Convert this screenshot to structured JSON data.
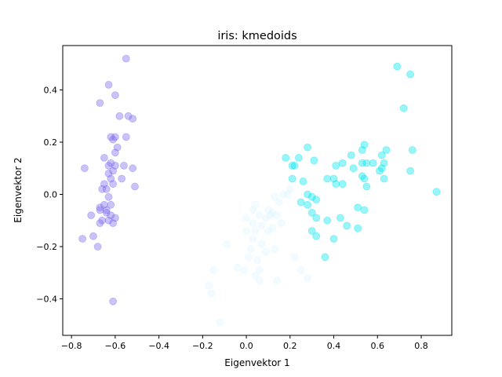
{
  "chart_data": {
    "type": "scatter",
    "title": "iris: kmedoids",
    "xlabel": "Eigenvektor 1",
    "ylabel": "Eigenvektor 2",
    "xlim": [
      -0.84,
      0.94
    ],
    "ylim": [
      -0.54,
      0.57
    ],
    "xticks": [
      -0.8,
      -0.6,
      -0.4,
      -0.2,
      0.0,
      0.2,
      0.4,
      0.6,
      0.8
    ],
    "xtick_labels": [
      "−0.8",
      "−0.6",
      "−0.4",
      "−0.2",
      "0.0",
      "0.2",
      "0.4",
      "0.6",
      "0.8"
    ],
    "yticks": [
      -0.4,
      -0.2,
      0.0,
      0.2,
      0.4
    ],
    "ytick_labels": [
      "−0.4",
      "−0.2",
      "0.0",
      "0.2",
      "0.4"
    ],
    "grid": false,
    "marker_alpha": 0.4,
    "series": [
      {
        "color": "#7b68ee",
        "points": [
          [
            -0.55,
            0.52
          ],
          [
            -0.63,
            0.42
          ],
          [
            -0.6,
            0.38
          ],
          [
            -0.67,
            0.35
          ],
          [
            -0.58,
            0.3
          ],
          [
            -0.54,
            0.3
          ],
          [
            -0.52,
            0.29
          ],
          [
            -0.62,
            0.22
          ],
          [
            -0.6,
            0.22
          ],
          [
            -0.61,
            0.21
          ],
          [
            -0.55,
            0.22
          ],
          [
            -0.59,
            0.18
          ],
          [
            -0.6,
            0.16
          ],
          [
            -0.65,
            0.14
          ],
          [
            -0.62,
            0.12
          ],
          [
            -0.63,
            0.11
          ],
          [
            -0.6,
            0.11
          ],
          [
            -0.56,
            0.11
          ],
          [
            -0.52,
            0.1
          ],
          [
            -0.74,
            0.1
          ],
          [
            -0.61,
            0.09
          ],
          [
            -0.63,
            0.08
          ],
          [
            -0.62,
            0.06
          ],
          [
            -0.57,
            0.06
          ],
          [
            -0.65,
            0.04
          ],
          [
            -0.61,
            0.04
          ],
          [
            -0.51,
            0.03
          ],
          [
            -0.64,
            0.02
          ],
          [
            -0.66,
            0.02
          ],
          [
            -0.63,
            -0.01
          ],
          [
            -0.65,
            -0.04
          ],
          [
            -0.62,
            -0.04
          ],
          [
            -0.67,
            -0.05
          ],
          [
            -0.64,
            -0.06
          ],
          [
            -0.67,
            -0.06
          ],
          [
            -0.64,
            -0.07
          ],
          [
            -0.71,
            -0.08
          ],
          [
            -0.62,
            -0.08
          ],
          [
            -0.6,
            -0.09
          ],
          [
            -0.66,
            -0.1
          ],
          [
            -0.63,
            -0.1
          ],
          [
            -0.67,
            -0.11
          ],
          [
            -0.61,
            -0.11
          ],
          [
            -0.7,
            -0.16
          ],
          [
            -0.75,
            -0.17
          ],
          [
            -0.68,
            -0.2
          ],
          [
            -0.61,
            -0.41
          ]
        ]
      },
      {
        "color": "#00e5ee",
        "points": [
          [
            0.69,
            0.49
          ],
          [
            0.75,
            0.46
          ],
          [
            0.72,
            0.33
          ],
          [
            0.28,
            0.18
          ],
          [
            0.54,
            0.19
          ],
          [
            0.76,
            0.17
          ],
          [
            0.53,
            0.17
          ],
          [
            0.64,
            0.17
          ],
          [
            0.48,
            0.15
          ],
          [
            0.62,
            0.15
          ],
          [
            0.18,
            0.14
          ],
          [
            0.24,
            0.14
          ],
          [
            0.55,
            0.12
          ],
          [
            0.53,
            0.12
          ],
          [
            0.31,
            0.13
          ],
          [
            0.44,
            0.12
          ],
          [
            0.58,
            0.12
          ],
          [
            0.63,
            0.12
          ],
          [
            0.21,
            0.11
          ],
          [
            0.22,
            0.11
          ],
          [
            0.41,
            0.11
          ],
          [
            0.49,
            0.1
          ],
          [
            0.62,
            0.1
          ],
          [
            0.61,
            0.09
          ],
          [
            0.75,
            0.09
          ],
          [
            0.53,
            0.07
          ],
          [
            0.54,
            0.06
          ],
          [
            0.21,
            0.06
          ],
          [
            0.37,
            0.06
          ],
          [
            0.4,
            0.06
          ],
          [
            0.63,
            0.06
          ],
          [
            0.26,
            0.05
          ],
          [
            0.55,
            0.03
          ],
          [
            0.41,
            0.04
          ],
          [
            0.44,
            0.04
          ],
          [
            0.87,
            0.01
          ],
          [
            0.28,
            0.0
          ],
          [
            0.3,
            -0.01
          ],
          [
            0.32,
            -0.02
          ],
          [
            0.25,
            -0.03
          ],
          [
            0.28,
            -0.04
          ],
          [
            0.51,
            -0.05
          ],
          [
            0.54,
            -0.06
          ],
          [
            0.3,
            -0.07
          ],
          [
            0.43,
            -0.09
          ],
          [
            0.32,
            -0.09
          ],
          [
            0.37,
            -0.1
          ],
          [
            0.46,
            -0.12
          ],
          [
            0.3,
            -0.14
          ],
          [
            0.51,
            -0.13
          ],
          [
            0.32,
            -0.16
          ],
          [
            0.4,
            -0.17
          ],
          [
            0.36,
            -0.24
          ]
        ]
      },
      {
        "color": "#dff4ff",
        "points": [
          [
            0.2,
            0.02
          ],
          [
            0.19,
            0.0
          ],
          [
            0.17,
            0.0
          ],
          [
            0.13,
            -0.01
          ],
          [
            0.15,
            -0.03
          ],
          [
            0.04,
            -0.04
          ],
          [
            0.03,
            -0.06
          ],
          [
            0.1,
            -0.06
          ],
          [
            0.12,
            -0.07
          ],
          [
            0.06,
            -0.08
          ],
          [
            0.14,
            -0.08
          ],
          [
            0.0,
            -0.09
          ],
          [
            0.11,
            -0.08
          ],
          [
            0.09,
            -0.09
          ],
          [
            0.03,
            -0.11
          ],
          [
            0.16,
            -0.11
          ],
          [
            0.07,
            -0.12
          ],
          [
            0.12,
            -0.13
          ],
          [
            0.1,
            -0.14
          ],
          [
            0.0,
            -0.14
          ],
          [
            0.04,
            -0.14
          ],
          [
            0.03,
            -0.17
          ],
          [
            0.07,
            -0.19
          ],
          [
            -0.09,
            -0.19
          ],
          [
            0.02,
            -0.21
          ],
          [
            0.13,
            -0.21
          ],
          [
            0.09,
            -0.22
          ],
          [
            0.01,
            -0.24
          ],
          [
            0.05,
            -0.25
          ],
          [
            0.22,
            -0.24
          ],
          [
            -0.04,
            -0.28
          ],
          [
            -0.01,
            -0.29
          ],
          [
            0.06,
            -0.29
          ],
          [
            0.25,
            -0.29
          ],
          [
            -0.15,
            -0.29
          ],
          [
            0.04,
            -0.31
          ],
          [
            0.28,
            -0.32
          ],
          [
            0.06,
            -0.33
          ],
          [
            0.14,
            -0.33
          ],
          [
            -0.17,
            -0.35
          ],
          [
            -0.16,
            -0.38
          ],
          [
            -0.12,
            -0.49
          ]
        ]
      }
    ]
  }
}
